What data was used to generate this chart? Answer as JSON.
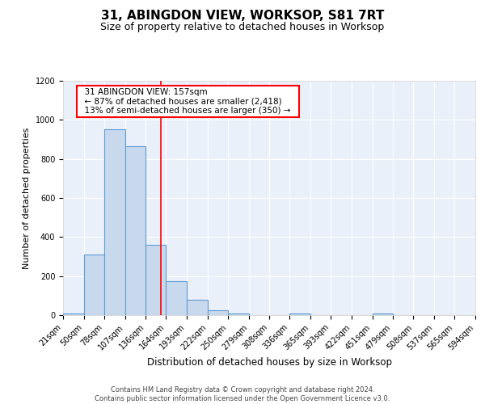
{
  "title": "31, ABINGDON VIEW, WORKSOP, S81 7RT",
  "subtitle": "Size of property relative to detached houses in Worksop",
  "xlabel": "Distribution of detached houses by size in Worksop",
  "ylabel": "Number of detached properties",
  "footer": "Contains HM Land Registry data © Crown copyright and database right 2024.\nContains public sector information licensed under the Open Government Licence v3.0.",
  "annotation_line1": "31 ABINGDON VIEW: 157sqm",
  "annotation_line2": "← 87% of detached houses are smaller (2,418)",
  "annotation_line3": "13% of semi-detached houses are larger (350) →",
  "property_line_x": 157,
  "bar_color": "#c9d9ed",
  "bar_edge_color": "#5b9bd5",
  "line_color": "#ff0000",
  "bin_edges": [
    21,
    50,
    78,
    107,
    136,
    164,
    193,
    222,
    250,
    279,
    308,
    336,
    365,
    393,
    422,
    451,
    479,
    508,
    537,
    565,
    594
  ],
  "bin_counts": [
    10,
    310,
    950,
    865,
    360,
    175,
    80,
    25,
    10,
    0,
    0,
    10,
    0,
    0,
    0,
    10,
    0,
    0,
    0,
    0
  ],
  "xlim_min": 21,
  "xlim_max": 594,
  "ylim_min": 0,
  "ylim_max": 1200,
  "yticks": [
    0,
    200,
    400,
    600,
    800,
    1000,
    1200
  ],
  "background_color": "#eaf0f9",
  "title_fontsize": 11,
  "subtitle_fontsize": 9,
  "ylabel_fontsize": 8,
  "xlabel_fontsize": 8.5,
  "footer_fontsize": 6,
  "tick_fontsize": 7
}
